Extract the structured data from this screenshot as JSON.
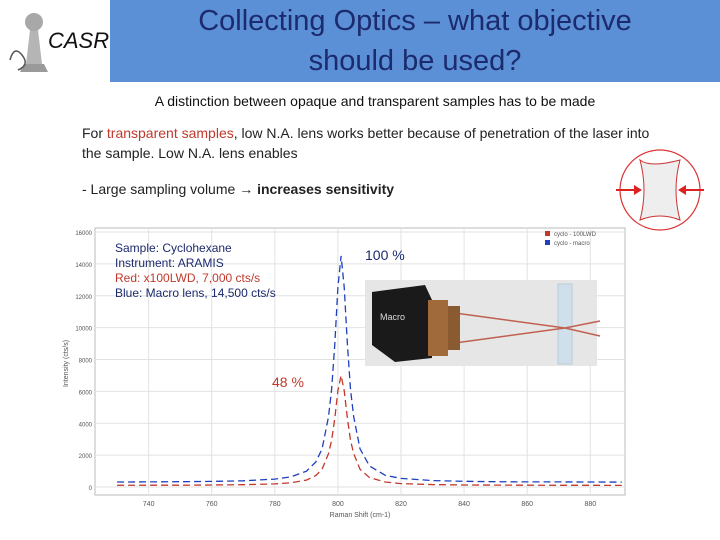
{
  "logo": {
    "text": "CASR"
  },
  "header": {
    "title": "Collecting Optics – what objective should be used?"
  },
  "subtitle": "A distinction between opaque and transparent samples has to be made",
  "paragraph": {
    "parts": [
      "For ",
      "transparent samples",
      ", low N.A. lens works better because of penetration of the laser into the sample. Low N.A. lens enables"
    ]
  },
  "bullet": {
    "parts": [
      "- Large sampling volume ",
      "→",
      " increases sensitivity"
    ]
  },
  "inset": {
    "label": "Macro"
  },
  "chart_data": {
    "type": "line",
    "xlabel": "Raman Shift (cm-1)",
    "ylabel": "Intensity (cts/s)",
    "x": [
      730,
      740,
      750,
      760,
      770,
      780,
      785,
      790,
      793,
      795,
      797,
      798,
      799,
      800,
      801,
      802,
      803,
      804,
      805,
      807,
      810,
      815,
      820,
      830,
      840,
      850,
      860,
      870,
      880,
      890
    ],
    "series": [
      {
        "name": "cyclo - 100LWD",
        "color": "#c0392b",
        "values": [
          109,
          112,
          117,
          126,
          145,
          197,
          264,
          436,
          717,
          1120,
          2097,
          2932,
          4308,
          6049,
          7000,
          6049,
          4308,
          2932,
          2097,
          1120,
          594,
          313,
          218,
          151,
          128,
          118,
          112,
          109,
          107,
          105
        ]
      },
      {
        "name": "cyclo - macro",
        "color": "#1f3fbf",
        "values": [
          318,
          324,
          334,
          353,
          392,
          499,
          638,
          992,
          1570,
          2399,
          4409,
          6127,
          8959,
          12541,
          14500,
          12541,
          8959,
          6127,
          4409,
          2399,
          1317,
          739,
          542,
          405,
          358,
          337,
          325,
          319,
          314,
          311
        ]
      }
    ],
    "xlim": [
      723,
      891
    ],
    "ylim": [
      -500,
      16000
    ],
    "xticks": [
      740,
      760,
      780,
      800,
      820,
      840,
      860,
      880
    ],
    "yticks": [
      0,
      2000,
      4000,
      6000,
      8000,
      10000,
      12000,
      14000,
      16000
    ],
    "grid": true,
    "legend": "upper right",
    "notes": [
      {
        "text": "Sample: Cyclohexane",
        "color": "#1c2a6e"
      },
      {
        "text": "Instrument: ARAMIS",
        "color": "#1c2a6e"
      },
      {
        "text": "Red: x100LWD, 7,000 cts/s",
        "color": "#c0392b"
      },
      {
        "text": "Blue: Macro lens, 14,500 cts/s",
        "color": "#1c2a6e"
      }
    ],
    "annotations": [
      {
        "text": "100 %",
        "color": "#1c2a6e"
      },
      {
        "text": "48 %",
        "color": "#c0392b"
      }
    ]
  }
}
